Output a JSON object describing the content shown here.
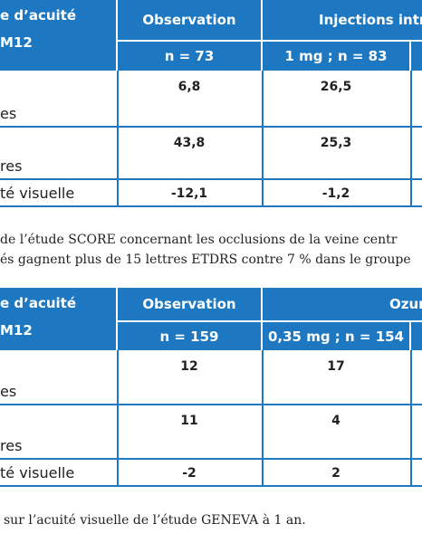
{
  "tables": [
    {
      "stub": [
        "e d’acuité",
        "M12"
      ],
      "col1_head": "Observation",
      "col1_sub": "n = 73",
      "col2_head": "Injections intra",
      "col2_sub": "1 mg ; n = 83",
      "rows": [
        {
          "label": "es",
          "values": [
            "6,8",
            "26,5"
          ]
        },
        {
          "label": "res",
          "values": [
            "43,8",
            "25,3"
          ]
        },
        {
          "label": "té visuelle",
          "values": [
            "-12,1",
            "-1,2"
          ]
        }
      ]
    },
    {
      "stub": [
        "e d’acuité",
        "M12"
      ],
      "col1_head": "Observation",
      "col1_sub": "n = 159",
      "col2_head": "Ozurd",
      "col2_sub": "0,35 mg ; n = 154",
      "rows": [
        {
          "label": "es",
          "values": [
            "12",
            "17"
          ]
        },
        {
          "label": "res",
          "values": [
            "11",
            "4"
          ]
        },
        {
          "label": "té visuelle",
          "values": [
            "-2",
            "2"
          ]
        }
      ]
    }
  ],
  "text_lines": [
    "de l’étude SCORE concernant les occlusions de la veine centr",
    "és gagnent plus de 15 lettres ETDRS contre 7 % dans le groupe",
    "sur l’acuité visuelle de l’étude GENEVA à 1 an."
  ]
}
